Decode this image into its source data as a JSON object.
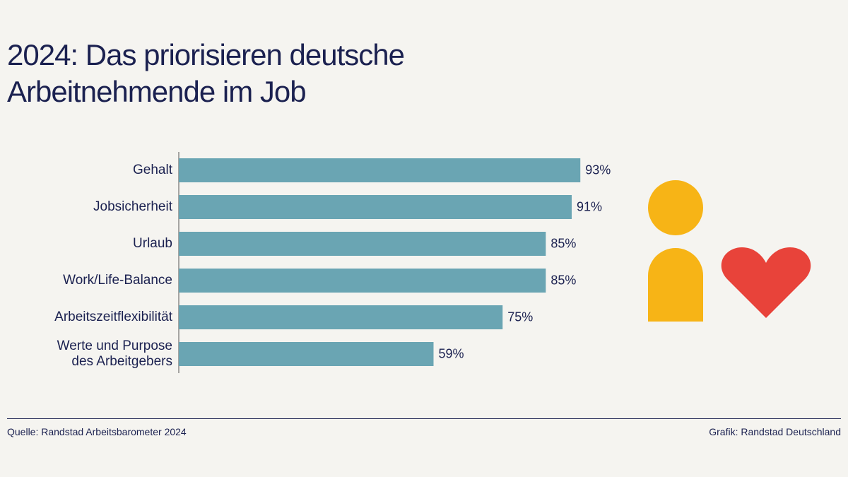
{
  "chart_data": {
    "type": "bar",
    "orientation": "horizontal",
    "title": "2024: Das priorisieren deutsche Arbeitnehmende im Job",
    "categories": [
      "Gehalt",
      "Jobsicherheit",
      "Urlaub",
      "Work/Life-Balance",
      "Arbeitszeitflexibilität",
      "Werte und Purpose des Arbeitgebers"
    ],
    "values": [
      93,
      91,
      85,
      85,
      75,
      59
    ],
    "value_labels": [
      "93%",
      "91%",
      "85%",
      "85%",
      "75%",
      "59%"
    ],
    "color": "#6aa5b3",
    "xlim": [
      0,
      100
    ],
    "source": "Quelle: Randstad Arbeitsbarometer 2024",
    "credit": "Grafik: Randstad Deutschland"
  }
}
